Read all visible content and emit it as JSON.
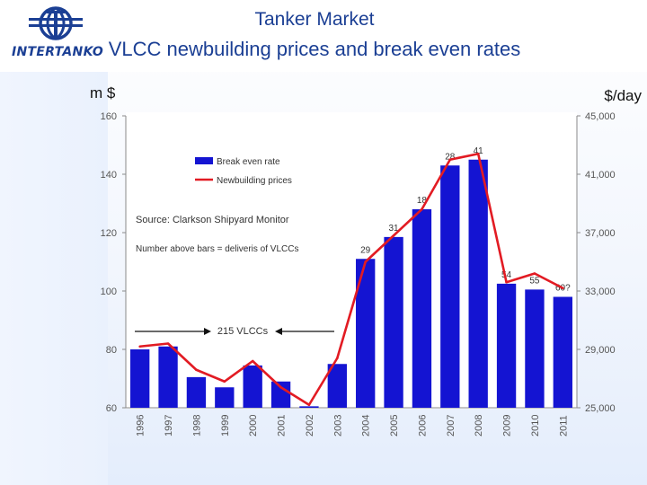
{
  "header": {
    "logo_text": "INTERTANKO",
    "title_line1": "Tanker Market",
    "title_line2": "VLCC newbuilding prices and break even rates"
  },
  "units": {
    "left": "m $",
    "right": "$/day"
  },
  "colors": {
    "bars": "#1414d2",
    "line": "#e21b23",
    "title": "#1b3f94"
  },
  "chart_data": {
    "type": "bar",
    "categories": [
      "1996",
      "1997",
      "1998",
      "1999",
      "2000",
      "2001",
      "2002",
      "2003",
      "2004",
      "2005",
      "2006",
      "2007",
      "2008",
      "2009",
      "2010",
      "2011"
    ],
    "series": [
      {
        "name": "Break even rate",
        "type": "bar",
        "axis": "right",
        "values": [
          29000,
          29200,
          27100,
          26400,
          27900,
          26800,
          25100,
          28000,
          35200,
          36700,
          38600,
          41600,
          42000,
          33500,
          33100,
          32600
        ]
      },
      {
        "name": "Newbuilding prices",
        "type": "line",
        "axis": "left",
        "values": [
          81,
          82,
          73,
          69,
          76,
          67,
          61,
          77,
          110,
          119,
          128,
          145,
          147,
          103,
          106,
          101
        ]
      }
    ],
    "bar_labels": [
      "",
      "",
      "",
      "",
      "",
      "",
      "",
      "",
      "29",
      "31",
      "18",
      "28",
      "41",
      "54",
      "55",
      "60?"
    ],
    "left_axis": {
      "ylim": [
        60,
        160
      ],
      "ticks": [
        "60",
        "80",
        "100",
        "120",
        "140",
        "160"
      ]
    },
    "right_axis": {
      "ylim": [
        25000,
        45000
      ],
      "ticks": [
        "25,000",
        "29,000",
        "33,000",
        "37,000",
        "41,000",
        "45,000"
      ]
    },
    "legend": [
      "Break even rate",
      "Newbuilding prices"
    ],
    "annotations": {
      "source": "Source: Clarkson Shipyard Monitor",
      "note": "Number above bars = deliveris of VLCCs",
      "span_label": "215 VLCCs"
    },
    "grid": false
  }
}
